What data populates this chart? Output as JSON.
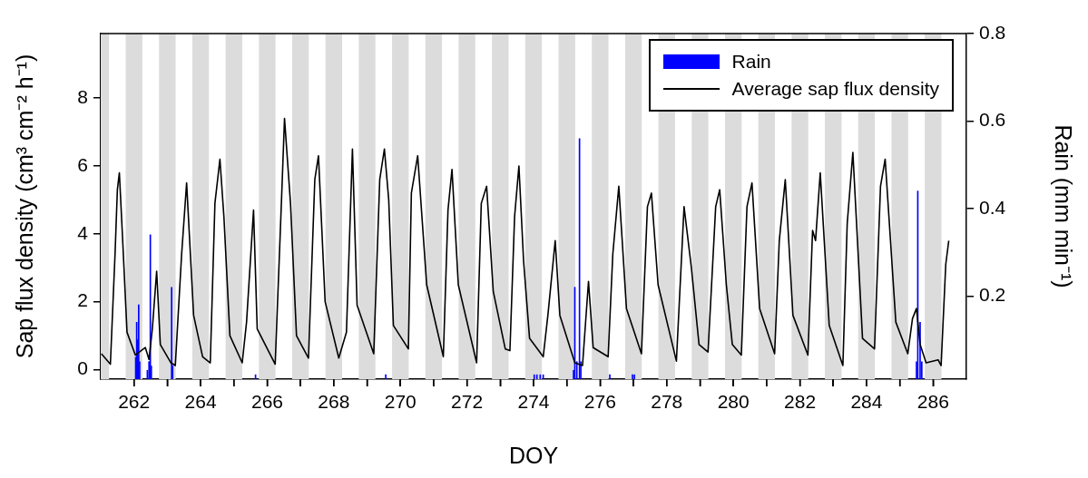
{
  "chart_data": {
    "type": "line",
    "xlabel": "DOY",
    "ylabel": "Sap flux density (cm³ cm⁻² h⁻¹)",
    "y2label": "Rain (mm min⁻¹)",
    "xlim": [
      261,
      287
    ],
    "xticks": [
      262,
      {
        "value": 263,
        "label": null
      },
      264,
      {
        "value": 265,
        "label": null
      },
      266,
      {
        "value": 267,
        "label": null
      },
      268,
      {
        "value": 269,
        "label": null
      },
      270,
      {
        "value": 271,
        "label": null
      },
      272,
      {
        "value": 273,
        "label": null
      },
      274,
      {
        "value": 275,
        "label": null
      },
      276,
      {
        "value": 277,
        "label": null
      },
      278,
      {
        "value": 279,
        "label": null
      },
      280,
      {
        "value": 281,
        "label": null
      },
      282,
      {
        "value": 283,
        "label": null
      },
      284,
      {
        "value": 285,
        "label": null
      },
      286
    ],
    "ylim": [
      -0.28,
      9.9
    ],
    "yticks": [
      0,
      2,
      4,
      6,
      8
    ],
    "y2lim": [
      0.01,
      0.8
    ],
    "y2ticks": [
      0.2,
      0.4,
      0.6,
      0.8
    ],
    "grid": false,
    "legend": "top right",
    "marker": "none",
    "line_style": "solid",
    "bands": [
      {
        "axis": "x",
        "from": 261,
        "to": 261.25,
        "color": "#dcdcdc"
      },
      {
        "axis": "x",
        "from": 261.75,
        "to": 262.25,
        "color": "#dcdcdc"
      },
      {
        "axis": "x",
        "from": 262.75,
        "to": 263.25,
        "color": "#dcdcdc"
      },
      {
        "axis": "x",
        "from": 263.75,
        "to": 264.25,
        "color": "#dcdcdc"
      },
      {
        "axis": "x",
        "from": 264.75,
        "to": 265.25,
        "color": "#dcdcdc"
      },
      {
        "axis": "x",
        "from": 265.75,
        "to": 266.25,
        "color": "#dcdcdc"
      },
      {
        "axis": "x",
        "from": 266.75,
        "to": 267.25,
        "color": "#dcdcdc"
      },
      {
        "axis": "x",
        "from": 267.75,
        "to": 268.25,
        "color": "#dcdcdc"
      },
      {
        "axis": "x",
        "from": 268.75,
        "to": 269.25,
        "color": "#dcdcdc"
      },
      {
        "axis": "x",
        "from": 269.75,
        "to": 270.25,
        "color": "#dcdcdc"
      },
      {
        "axis": "x",
        "from": 270.75,
        "to": 271.25,
        "color": "#dcdcdc"
      },
      {
        "axis": "x",
        "from": 271.75,
        "to": 272.25,
        "color": "#dcdcdc"
      },
      {
        "axis": "x",
        "from": 272.75,
        "to": 273.25,
        "color": "#dcdcdc"
      },
      {
        "axis": "x",
        "from": 273.75,
        "to": 274.25,
        "color": "#dcdcdc"
      },
      {
        "axis": "x",
        "from": 274.75,
        "to": 275.25,
        "color": "#dcdcdc"
      },
      {
        "axis": "x",
        "from": 275.75,
        "to": 276.25,
        "color": "#dcdcdc"
      },
      {
        "axis": "x",
        "from": 276.75,
        "to": 277.25,
        "color": "#dcdcdc"
      },
      {
        "axis": "x",
        "from": 277.75,
        "to": 278.25,
        "color": "#dcdcdc"
      },
      {
        "axis": "x",
        "from": 278.75,
        "to": 279.25,
        "color": "#dcdcdc"
      },
      {
        "axis": "x",
        "from": 279.75,
        "to": 280.25,
        "color": "#dcdcdc"
      },
      {
        "axis": "x",
        "from": 280.75,
        "to": 281.25,
        "color": "#dcdcdc"
      },
      {
        "axis": "x",
        "from": 281.75,
        "to": 282.25,
        "color": "#dcdcdc"
      },
      {
        "axis": "x",
        "from": 282.75,
        "to": 283.25,
        "color": "#dcdcdc"
      },
      {
        "axis": "x",
        "from": 283.75,
        "to": 284.25,
        "color": "#dcdcdc"
      },
      {
        "axis": "x",
        "from": 284.75,
        "to": 285.25,
        "color": "#dcdcdc"
      },
      {
        "axis": "x",
        "from": 285.75,
        "to": 286.25,
        "color": "#dcdcdc"
      }
    ],
    "series": [
      {
        "name": "Rain",
        "type": "bar",
        "axis": "y2",
        "color": "#0000ff",
        "x": [
          262.05,
          262.08,
          262.11,
          262.14,
          262.17,
          262.4,
          262.45,
          262.49,
          262.52,
          263.13,
          263.16,
          265.65,
          269.56,
          274.02,
          274.1,
          274.2,
          274.29,
          275.2,
          275.24,
          275.3,
          275.38,
          275.42,
          276.29,
          276.97,
          277.03,
          285.5,
          285.54,
          285.61,
          285.66
        ],
        "values": [
          0.06,
          0.14,
          0.1,
          0.18,
          0.05,
          0.03,
          0.05,
          0.34,
          0.04,
          0.22,
          0.04,
          0.02,
          0.02,
          0.02,
          0.02,
          0.02,
          0.02,
          0.03,
          0.22,
          0.05,
          0.56,
          0.05,
          0.02,
          0.02,
          0.02,
          0.05,
          0.44,
          0.14,
          0.05
        ]
      },
      {
        "name": "Average sap flux density",
        "color": "#000000",
        "x": [
          261.02,
          261.29,
          261.43,
          261.5,
          261.56,
          261.65,
          261.79,
          262.04,
          262.34,
          262.45,
          262.55,
          262.68,
          262.79,
          263.11,
          263.24,
          263.43,
          263.58,
          263.79,
          264.06,
          264.29,
          264.43,
          264.58,
          264.7,
          264.88,
          265.25,
          265.38,
          265.59,
          265.7,
          266.24,
          266.43,
          266.52,
          266.7,
          266.88,
          267.24,
          267.43,
          267.54,
          267.74,
          268.15,
          268.38,
          268.56,
          268.7,
          269.2,
          269.38,
          269.52,
          269.65,
          269.79,
          270.24,
          270.33,
          270.52,
          270.79,
          271.29,
          271.43,
          271.55,
          271.74,
          272.29,
          272.43,
          272.59,
          272.79,
          273.15,
          273.29,
          273.43,
          273.56,
          273.7,
          273.88,
          274.29,
          274.43,
          274.65,
          274.79,
          275.24,
          275.47,
          275.65,
          275.79,
          276.24,
          276.38,
          276.56,
          276.79,
          277.24,
          277.42,
          277.54,
          277.74,
          278.29,
          278.52,
          278.74,
          278.97,
          279.24,
          279.47,
          279.59,
          279.79,
          279.97,
          280.24,
          280.41,
          280.56,
          280.79,
          281.24,
          281.38,
          281.56,
          281.79,
          282.24,
          282.38,
          282.47,
          282.61,
          282.88,
          283.29,
          283.42,
          283.59,
          283.88,
          284.24,
          284.42,
          284.56,
          284.88,
          285.24,
          285.38,
          285.5,
          285.61,
          285.79,
          286.15,
          286.24,
          286.38,
          286.47
        ],
        "values": [
          0.47,
          0.16,
          3.4,
          5.3,
          5.8,
          4.0,
          1.1,
          0.43,
          0.65,
          0.3,
          1.2,
          2.9,
          0.74,
          0.2,
          0.12,
          3.4,
          5.5,
          1.6,
          0.38,
          0.2,
          4.9,
          6.2,
          4.5,
          1.0,
          0.2,
          1.4,
          4.7,
          1.2,
          0.16,
          5.0,
          7.4,
          4.9,
          1.0,
          0.34,
          5.6,
          6.3,
          2.0,
          0.34,
          1.1,
          6.5,
          1.9,
          0.47,
          5.6,
          6.5,
          5.0,
          1.3,
          0.61,
          5.2,
          6.3,
          2.5,
          0.38,
          4.7,
          5.9,
          2.5,
          0.2,
          4.9,
          5.4,
          2.3,
          0.61,
          0.56,
          4.5,
          6.0,
          3.2,
          0.92,
          0.38,
          1.6,
          3.8,
          1.6,
          0.2,
          0.12,
          2.6,
          0.65,
          0.38,
          3.4,
          5.4,
          1.8,
          0.47,
          4.8,
          5.2,
          2.5,
          0.25,
          4.8,
          3.0,
          0.74,
          0.52,
          4.8,
          5.3,
          2.5,
          0.74,
          0.43,
          4.8,
          5.5,
          1.8,
          0.47,
          3.8,
          5.6,
          1.6,
          0.43,
          4.1,
          3.8,
          5.8,
          1.3,
          0.12,
          4.3,
          6.4,
          0.92,
          0.61,
          5.4,
          6.2,
          1.4,
          0.47,
          1.5,
          1.8,
          0.74,
          0.2,
          0.29,
          0.12,
          3.1,
          3.8
        ]
      }
    ]
  }
}
